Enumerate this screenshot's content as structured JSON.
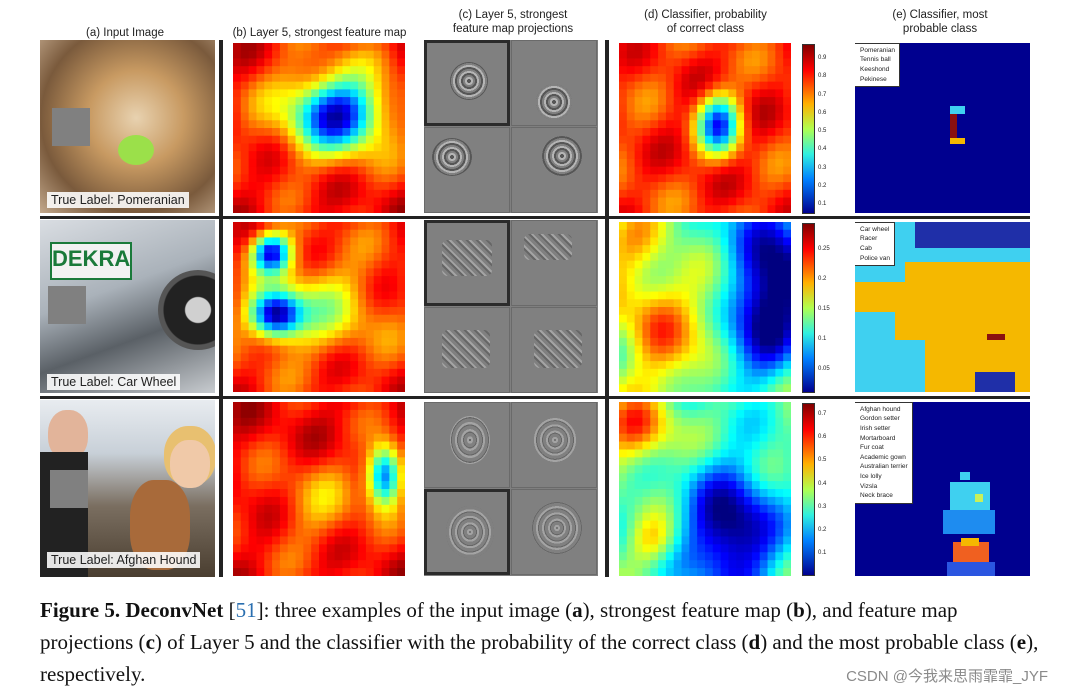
{
  "columns": [
    {
      "header": "(a) Input Image"
    },
    {
      "header": "(b) Layer 5, strongest feature map"
    },
    {
      "header": "(c) Layer 5, strongest\nfeature map projections"
    },
    {
      "header": "(d) Classifier, probability\nof correct class"
    },
    {
      "header": "(e) Classifier, most\nprobable class"
    }
  ],
  "rows": [
    {
      "true_label": "True Label: Pomeranian",
      "colorbar_ticks": [
        "0.9",
        "0.8",
        "0.7",
        "0.6",
        "0.5",
        "0.4",
        "0.3",
        "0.2",
        "0.1"
      ],
      "legend": [
        {
          "label": "Pomeranian",
          "color": "#1f2fa8"
        },
        {
          "label": "Tennis ball",
          "color": "#3fd0f0"
        },
        {
          "label": "Keeshond",
          "color": "#f5b800"
        },
        {
          "label": "Pekinese",
          "color": "#8a1010"
        }
      ]
    },
    {
      "true_label": "True Label: Car Wheel",
      "colorbar_ticks": [
        "0.25",
        "0.2",
        "0.15",
        "0.1",
        "0.05"
      ],
      "legend": [
        {
          "label": "Car wheel",
          "color": "#1f2fa8"
        },
        {
          "label": "Racer",
          "color": "#3fd0f0"
        },
        {
          "label": "Cab",
          "color": "#f5b800"
        },
        {
          "label": "Police van",
          "color": "#8a1010"
        }
      ]
    },
    {
      "true_label": "True Label: Afghan Hound",
      "colorbar_ticks": [
        "0.7",
        "0.6",
        "0.5",
        "0.4",
        "0.3",
        "0.2",
        "0.1"
      ],
      "legend": [
        {
          "label": "Afghan hound",
          "color": "#1f2fa8"
        },
        {
          "label": "Gordon setter",
          "color": "#2a55e0"
        },
        {
          "label": "Irish setter",
          "color": "#1e8cf0"
        },
        {
          "label": "Mortarboard",
          "color": "#3fd0f0"
        },
        {
          "label": "Fur coat",
          "color": "#7ff0d0"
        },
        {
          "label": "Academic gown",
          "color": "#c8f05a"
        },
        {
          "label": "Australian terrier",
          "color": "#f5b800"
        },
        {
          "label": "Ice lolly",
          "color": "#f06020"
        },
        {
          "label": "Vizsla",
          "color": "#e02020"
        },
        {
          "label": "Neck brace",
          "color": "#8a1010"
        }
      ]
    }
  ],
  "caption": {
    "label": "Figure 5.",
    "title": "DeconvNet",
    "cite": "51",
    "body_1": ": three examples of the input image (",
    "a": "a",
    "body_2": "), strongest feature map (",
    "b": "b",
    "body_3": "), and feature map projections (",
    "c": "c",
    "body_4": ") of Layer 5 and the classifier with the probability of the correct class (",
    "d": "d",
    "body_5": ") and the most probable class (",
    "e": "e",
    "body_6": "), respectively."
  },
  "watermark": "CSDN @今我来思雨霏霏_JYF"
}
